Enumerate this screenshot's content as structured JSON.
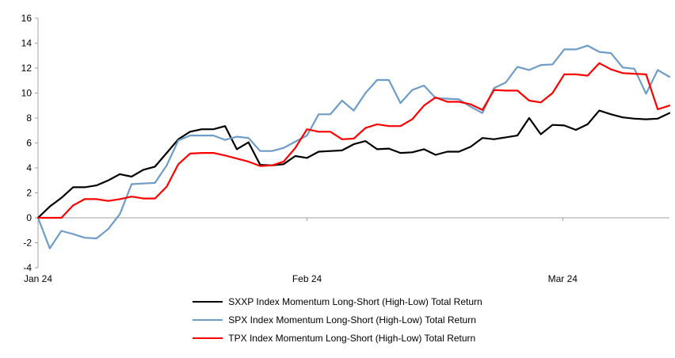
{
  "chart_data": {
    "type": "line",
    "title": "",
    "grid": "zero-line-only",
    "legend_position": "bottom",
    "axis_color": "#a0a0a0",
    "background_color": "#ffffff",
    "y_axis": {
      "min": -4,
      "max": 16,
      "tick_step": 2,
      "tick_labels": [
        "16",
        "14",
        "12",
        "10",
        "8",
        "6",
        "4",
        "2",
        "0",
        "-2",
        "-4"
      ]
    },
    "x_axis": {
      "tick_labels": [
        "Jan 24",
        "Feb 24",
        "Mar 24"
      ],
      "tick_positions": [
        0,
        0.426,
        0.831
      ]
    },
    "series": [
      {
        "id": "sxxp",
        "name": "SXXP Index Momentum Long-Short (High-Low) Total Return",
        "color": "#000000",
        "values": [
          0,
          0.9,
          1.6,
          2.45,
          2.45,
          2.6,
          3.0,
          3.5,
          3.3,
          3.85,
          4.1,
          5.2,
          6.3,
          6.9,
          7.1,
          7.1,
          7.35,
          5.5,
          6.05,
          4.25,
          4.2,
          4.3,
          4.95,
          4.8,
          5.3,
          5.35,
          5.4,
          5.9,
          6.15,
          5.5,
          5.55,
          5.2,
          5.25,
          5.5,
          5.05,
          5.3,
          5.3,
          5.7,
          6.4,
          6.3,
          6.45,
          6.6,
          8.0,
          6.7,
          7.45,
          7.4,
          7.05,
          7.5,
          8.6,
          8.3,
          8.05,
          7.95,
          7.9,
          7.95,
          8.4
        ]
      },
      {
        "id": "spx",
        "name": "SPX Index Momentum Long-Short (High-Low) Total Return",
        "color": "#6d9cc8",
        "values": [
          0,
          -2.45,
          -1.05,
          -1.3,
          -1.6,
          -1.65,
          -0.9,
          0.3,
          2.7,
          2.75,
          2.8,
          4.2,
          6.2,
          6.6,
          6.6,
          6.6,
          6.25,
          6.5,
          6.4,
          5.35,
          5.35,
          5.6,
          6.1,
          6.6,
          8.3,
          8.3,
          9.4,
          8.6,
          10.0,
          11.05,
          11.05,
          9.2,
          10.25,
          10.6,
          9.6,
          9.55,
          9.5,
          8.9,
          8.4,
          10.4,
          10.85,
          12.1,
          11.85,
          12.25,
          12.3,
          13.5,
          13.5,
          13.8,
          13.3,
          13.2,
          12.05,
          11.95,
          9.95,
          11.85,
          11.3
        ]
      },
      {
        "id": "tpx",
        "name": "TPX Index Momentum Long-Short (High-Low) Total Return",
        "color": "#ff0000",
        "values": [
          0,
          0,
          0,
          1.0,
          1.5,
          1.5,
          1.35,
          1.5,
          1.7,
          1.55,
          1.55,
          2.5,
          4.3,
          5.15,
          5.2,
          5.2,
          5.0,
          4.75,
          4.5,
          4.15,
          4.2,
          4.5,
          5.6,
          7.1,
          6.9,
          6.9,
          6.3,
          6.35,
          7.2,
          7.5,
          7.35,
          7.35,
          7.9,
          9.0,
          9.65,
          9.3,
          9.3,
          9.1,
          8.65,
          10.25,
          10.2,
          10.2,
          9.4,
          9.25,
          10.0,
          11.5,
          11.5,
          11.4,
          12.4,
          11.9,
          11.6,
          11.55,
          11.5,
          8.7,
          9.0
        ]
      }
    ]
  }
}
